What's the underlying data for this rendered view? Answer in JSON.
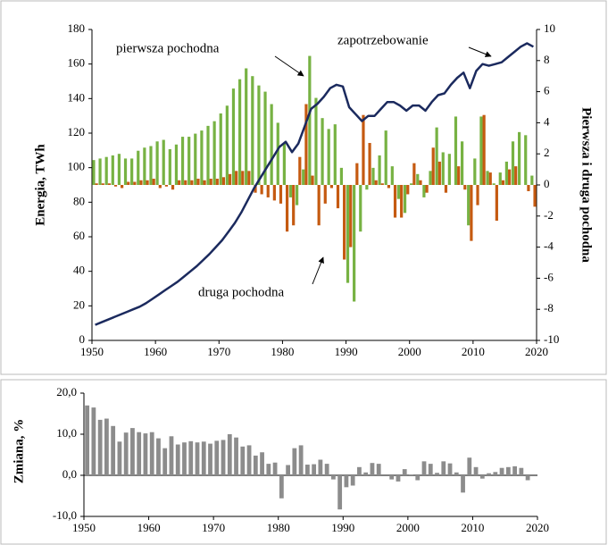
{
  "chart_data": [
    {
      "type": "combo",
      "ylabel": "Energia, TWh",
      "y2label": "Pierwsza i druga pochodna",
      "x": [
        1950,
        1951,
        1952,
        1953,
        1954,
        1955,
        1956,
        1957,
        1958,
        1959,
        1960,
        1961,
        1962,
        1963,
        1964,
        1965,
        1966,
        1967,
        1968,
        1969,
        1970,
        1971,
        1972,
        1973,
        1974,
        1975,
        1976,
        1977,
        1978,
        1979,
        1980,
        1981,
        1982,
        1983,
        1984,
        1985,
        1986,
        1987,
        1988,
        1989,
        1990,
        1991,
        1992,
        1993,
        1994,
        1995,
        1996,
        1997,
        1998,
        1999,
        2000,
        2001,
        2002,
        2003,
        2004,
        2005,
        2006,
        2007,
        2008,
        2009,
        2010,
        2011,
        2012,
        2013,
        2014,
        2015,
        2016,
        2017,
        2018,
        2019
      ],
      "xlim": [
        1950,
        2020
      ],
      "xticks": [
        1950,
        1960,
        1970,
        1980,
        1990,
        2000,
        2010,
        2020
      ],
      "ylim": [
        0,
        180
      ],
      "yticks": [
        0,
        20,
        40,
        60,
        80,
        100,
        120,
        140,
        160,
        180
      ],
      "y2lim": [
        -10,
        10
      ],
      "y2ticks": [
        -10,
        -8,
        -6,
        -4,
        -2,
        0,
        2,
        4,
        6,
        8,
        10
      ],
      "series": [
        {
          "name": "zapotrzebowanie",
          "mark": "line",
          "color": "#1b2a5e",
          "values": [
            9,
            10.5,
            12,
            13.5,
            15,
            16.5,
            18,
            19.5,
            21.5,
            24,
            26.5,
            29,
            31.5,
            34,
            37,
            40,
            43,
            46.5,
            50,
            54,
            58,
            63,
            68,
            74,
            81,
            88,
            94,
            100,
            106,
            112,
            115,
            109,
            114,
            124,
            134,
            137,
            141,
            146,
            148,
            147,
            135,
            131,
            127,
            130,
            130,
            134,
            138,
            138,
            136,
            133,
            136,
            136,
            133,
            138,
            142,
            143,
            148,
            152,
            155,
            146,
            156,
            160,
            159,
            160,
            161,
            164,
            167,
            170,
            172,
            170
          ]
        },
        {
          "name": "pierwsza pochodna",
          "mark": "bar",
          "axis": "y2",
          "color": "#77b243",
          "values": [
            1.6,
            1.7,
            1.8,
            1.9,
            2.0,
            1.7,
            1.7,
            2.2,
            2.4,
            2.5,
            2.8,
            2.9,
            2.3,
            2.6,
            3.1,
            3.1,
            3.3,
            3.5,
            3.8,
            4.1,
            4.6,
            5.1,
            6.2,
            6.8,
            7.5,
            7.0,
            6.4,
            6.0,
            5.2,
            4.0,
            2.7,
            -0.8,
            -1.3,
            1.0,
            8.3,
            5.6,
            4.3,
            3.6,
            3.9,
            1.1,
            -6.3,
            -7.5,
            -3.0,
            -0.3,
            1.1,
            1.9,
            3.5,
            1.2,
            -0.9,
            -1.8,
            0.1,
            0.7,
            -0.8,
            0.9,
            3.7,
            2.1,
            2.0,
            4.4,
            2.8,
            -2.6,
            1.7,
            4.4,
            0.9,
            0.1,
            0.8,
            1.5,
            2.8,
            3.4,
            3.2,
            0.6
          ]
        },
        {
          "name": "druga pochodna",
          "mark": "bar",
          "axis": "y2",
          "color": "#c55a11",
          "values": [
            0.1,
            0.1,
            0.1,
            -0.1,
            -0.2,
            0.2,
            0.2,
            0.3,
            0.3,
            0.4,
            -0.2,
            -0.1,
            -0.3,
            0.3,
            0.3,
            0.3,
            0.4,
            0.3,
            0.4,
            0.4,
            0.5,
            0.7,
            0.9,
            0.9,
            0.9,
            -0.5,
            -0.6,
            -0.8,
            -1.0,
            -1.2,
            -3.0,
            -2.6,
            1.8,
            5.2,
            0.6,
            -2.6,
            -1.2,
            -0.2,
            -1.5,
            -4.8,
            -4.0,
            1.4,
            4.5,
            2.7,
            0.3,
            0.1,
            -0.2,
            -2.1,
            -2.1,
            -0.6,
            1.4,
            0.3,
            -0.5,
            2.4,
            1.5,
            -0.5,
            0.0,
            1.2,
            -0.3,
            -3.6,
            -1.3,
            4.5,
            0.8,
            -2.3,
            0.3,
            1.0,
            1.2,
            0.0,
            -0.4,
            -1.4
          ]
        }
      ]
    },
    {
      "type": "bar",
      "ylabel": "Zmiana, %",
      "x": [
        1951,
        1952,
        1953,
        1954,
        1955,
        1956,
        1957,
        1958,
        1959,
        1960,
        1961,
        1962,
        1963,
        1964,
        1965,
        1966,
        1967,
        1968,
        1969,
        1970,
        1971,
        1972,
        1973,
        1974,
        1975,
        1976,
        1977,
        1978,
        1979,
        1980,
        1981,
        1982,
        1983,
        1984,
        1985,
        1986,
        1987,
        1988,
        1989,
        1990,
        1991,
        1992,
        1993,
        1994,
        1995,
        1996,
        1997,
        1998,
        1999,
        2000,
        2001,
        2002,
        2003,
        2004,
        2005,
        2006,
        2007,
        2008,
        2009,
        2010,
        2011,
        2012,
        2013,
        2014,
        2015,
        2016,
        2017,
        2018,
        2019
      ],
      "values": [
        17,
        16.5,
        13.5,
        13.8,
        12.0,
        8.2,
        10.4,
        11.5,
        10.5,
        10.2,
        10.5,
        9.0,
        6.6,
        9.5,
        7.5,
        8.0,
        8.3,
        8.0,
        8.2,
        7.7,
        8.4,
        8.6,
        10.0,
        9.2,
        7.0,
        7.3,
        4.8,
        5.6,
        2.8,
        3.1,
        -5.6,
        2.5,
        6.6,
        7.3,
        2.6,
        2.7,
        3.8,
        2.8,
        -1.0,
        -8.3,
        -2.9,
        -2.5,
        2.0,
        0.7,
        3.0,
        2.8,
        0.0,
        -1.0,
        -1.5,
        1.5,
        0.2,
        -1.2,
        3.4,
        2.8,
        0.6,
        3.4,
        2.9,
        0.7,
        -4.2,
        4.3,
        2.0,
        -0.8,
        0.5,
        0.8,
        1.8,
        2.0,
        2.2,
        1.8,
        -1.2
      ],
      "color": "#8c8c8c",
      "xlim": [
        1950,
        2020
      ],
      "xticks": [
        1950,
        1960,
        1970,
        1980,
        1990,
        2000,
        2010,
        2020
      ],
      "ylim": [
        -10,
        20
      ],
      "yticks": [
        {
          "value": -10,
          "label": "-10,0"
        },
        {
          "value": 0,
          "label": "0,0"
        },
        {
          "value": 10,
          "label": "10,0"
        },
        {
          "value": 20,
          "label": "20,0"
        }
      ]
    }
  ]
}
